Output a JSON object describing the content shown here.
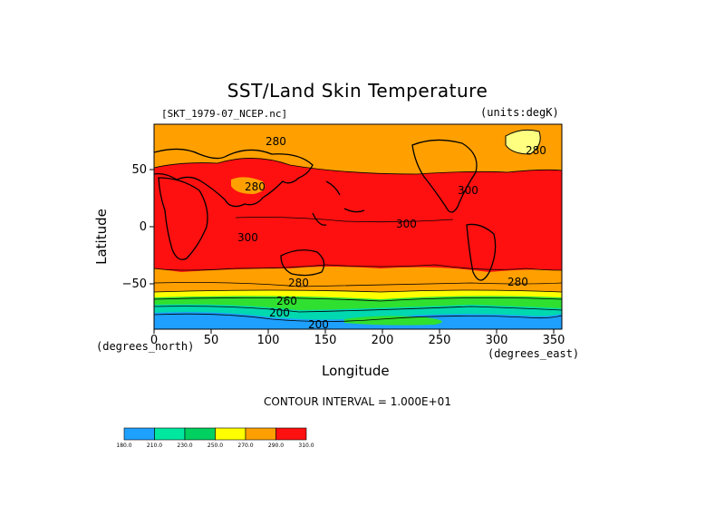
{
  "title": "SST/Land Skin Temperature",
  "file_label": "[SKT_1979-07_NCEP.nc]",
  "units_label": "(units:degK)",
  "x_axis": {
    "title": "Longitude",
    "unit": "(degrees_east)",
    "ticks": [
      "0",
      "50",
      "100",
      "150",
      "200",
      "250",
      "300",
      "350"
    ]
  },
  "y_axis": {
    "title": "Latitude",
    "unit": "(degrees_north)",
    "ticks": [
      "50",
      "0",
      "−50"
    ]
  },
  "contour_interval": "CONTOUR INTERVAL = 1.000E+01",
  "contour_labels": [
    "280",
    "280",
    "300",
    "300",
    "300",
    "280",
    "280",
    "260",
    "200",
    "200",
    "280"
  ],
  "colorbar": {
    "labels": [
      "180.0",
      "210.0",
      "230.0",
      "250.0",
      "270.0",
      "290.0",
      "310.0"
    ],
    "colors": [
      "#1ea0ff",
      "#00e8a0",
      "#00d060",
      "#50e800",
      "#ffff00",
      "#ffa000",
      "#ff1010"
    ]
  },
  "colors": {
    "red": "#ff1010",
    "orange": "#ffa000",
    "yellow": "#ffff80",
    "green": "#30e030",
    "teal": "#00d8b0",
    "blue": "#1ea0ff"
  }
}
